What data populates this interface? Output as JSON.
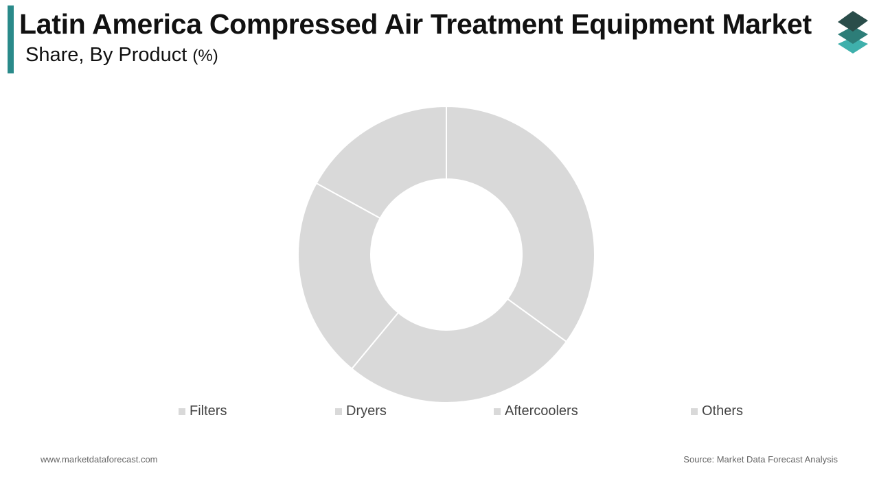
{
  "chart_data": {
    "type": "donut",
    "title": "Latin America Compressed Air Treatment Equipment Market",
    "subtitle": "Share, By Product",
    "unit": "(%)",
    "categories": [
      "Filters",
      "Dryers",
      "Aftercoolers",
      "Others"
    ],
    "values": [
      35,
      26,
      22,
      17
    ],
    "colors": [
      "#d9d9d9",
      "#d9d9d9",
      "#d9d9d9",
      "#d9d9d9"
    ],
    "footer_left": "www.marketdataforecast.com",
    "footer_right": "Source: Market Data Forecast Analysis"
  }
}
